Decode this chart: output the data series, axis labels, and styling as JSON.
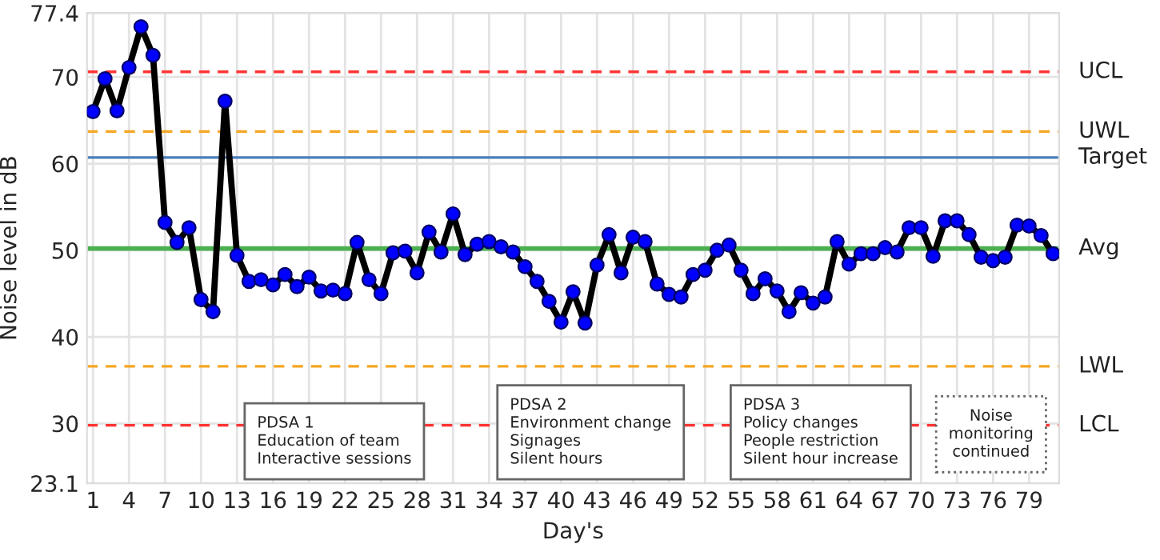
{
  "chart_data": {
    "type": "line",
    "xlabel": "Day's",
    "ylabel": "Noise level in dB",
    "x": [
      1,
      2,
      3,
      4,
      5,
      6,
      7,
      8,
      9,
      10,
      11,
      12,
      13,
      14,
      15,
      16,
      17,
      18,
      19,
      20,
      21,
      22,
      23,
      24,
      25,
      26,
      27,
      28,
      29,
      30,
      31,
      32,
      33,
      34,
      35,
      36,
      37,
      38,
      39,
      40,
      41,
      42,
      43,
      44,
      45,
      46,
      47,
      48,
      49,
      50,
      51,
      52,
      53,
      54,
      55,
      56,
      57,
      58,
      59,
      60,
      61,
      62,
      63,
      64,
      65,
      66,
      67,
      68,
      69,
      70,
      71,
      72,
      73,
      74,
      75,
      76,
      77,
      78,
      79,
      80,
      81
    ],
    "series": [
      {
        "color": "#000000",
        "values": [
          66.0,
          69.8,
          66.1,
          71.1,
          75.8,
          72.5,
          53.2,
          50.9,
          52.6,
          44.3,
          42.9,
          67.2,
          49.4,
          46.4,
          46.6,
          46.0,
          47.2,
          45.8,
          46.9,
          45.3,
          45.4,
          45.0,
          50.9,
          46.6,
          45.0,
          49.7,
          49.9,
          47.4,
          52.1,
          49.8,
          54.2,
          49.5,
          50.7,
          51.0,
          50.4,
          49.8,
          48.1,
          46.4,
          44.1,
          41.7,
          45.2,
          41.6,
          48.3,
          51.8,
          47.4,
          51.5,
          51.0,
          46.1,
          44.9,
          44.6,
          47.2,
          47.7,
          50.0,
          50.6,
          47.7,
          45.0,
          46.7,
          45.3,
          42.9,
          45.1,
          43.9,
          44.6,
          51.0,
          48.4,
          49.6,
          49.6,
          50.3,
          49.8,
          52.6,
          52.6,
          49.3,
          53.4,
          53.4,
          51.8,
          49.2,
          48.8,
          49.2,
          52.9,
          52.8,
          51.7,
          49.6
        ]
      }
    ],
    "marker": "circle",
    "line_style": "solid",
    "grid": true,
    "legend": false,
    "xlim": [
      0.5,
      81.5
    ],
    "xticks": [
      1,
      4,
      7,
      10,
      13,
      16,
      19,
      22,
      25,
      28,
      31,
      34,
      37,
      40,
      43,
      46,
      49,
      52,
      55,
      58,
      61,
      64,
      67,
      70,
      73,
      76,
      79
    ],
    "ylim": [
      23.1,
      77.4
    ],
    "yticks": [
      23.1,
      30,
      40,
      50,
      60,
      70,
      77.4
    ],
    "ref_lines": [
      {
        "axis": "y",
        "value": 70.6,
        "label": "UCL",
        "color": "#ff3333",
        "line_style": "dashed"
      },
      {
        "axis": "y",
        "value": 63.7,
        "label": "UWL",
        "color": "#f5a623",
        "line_style": "dashed"
      },
      {
        "axis": "y",
        "value": 60.7,
        "label": "Target",
        "color": "#4a7ebb",
        "line_style": "solid"
      },
      {
        "axis": "y",
        "value": 50.2,
        "label": "Avg",
        "color": "#4caf50",
        "line_style": "solid"
      },
      {
        "axis": "y",
        "value": 36.6,
        "label": "LWL",
        "color": "#f5a623",
        "line_style": "dashed"
      },
      {
        "axis": "y",
        "value": 29.8,
        "label": "LCL",
        "color": "#ff3333",
        "line_style": "dashed"
      }
    ],
    "annotations": [
      "PDSA 1\nEducation of team\nInteractive sessions",
      "PDSA 2\nEnvironment change\nSignages\nSilent hours",
      "PDSA 3\nPolicy changes\nPeople restriction\nSilent hour increase",
      "Noise\nmonitoring\ncontinued"
    ]
  }
}
